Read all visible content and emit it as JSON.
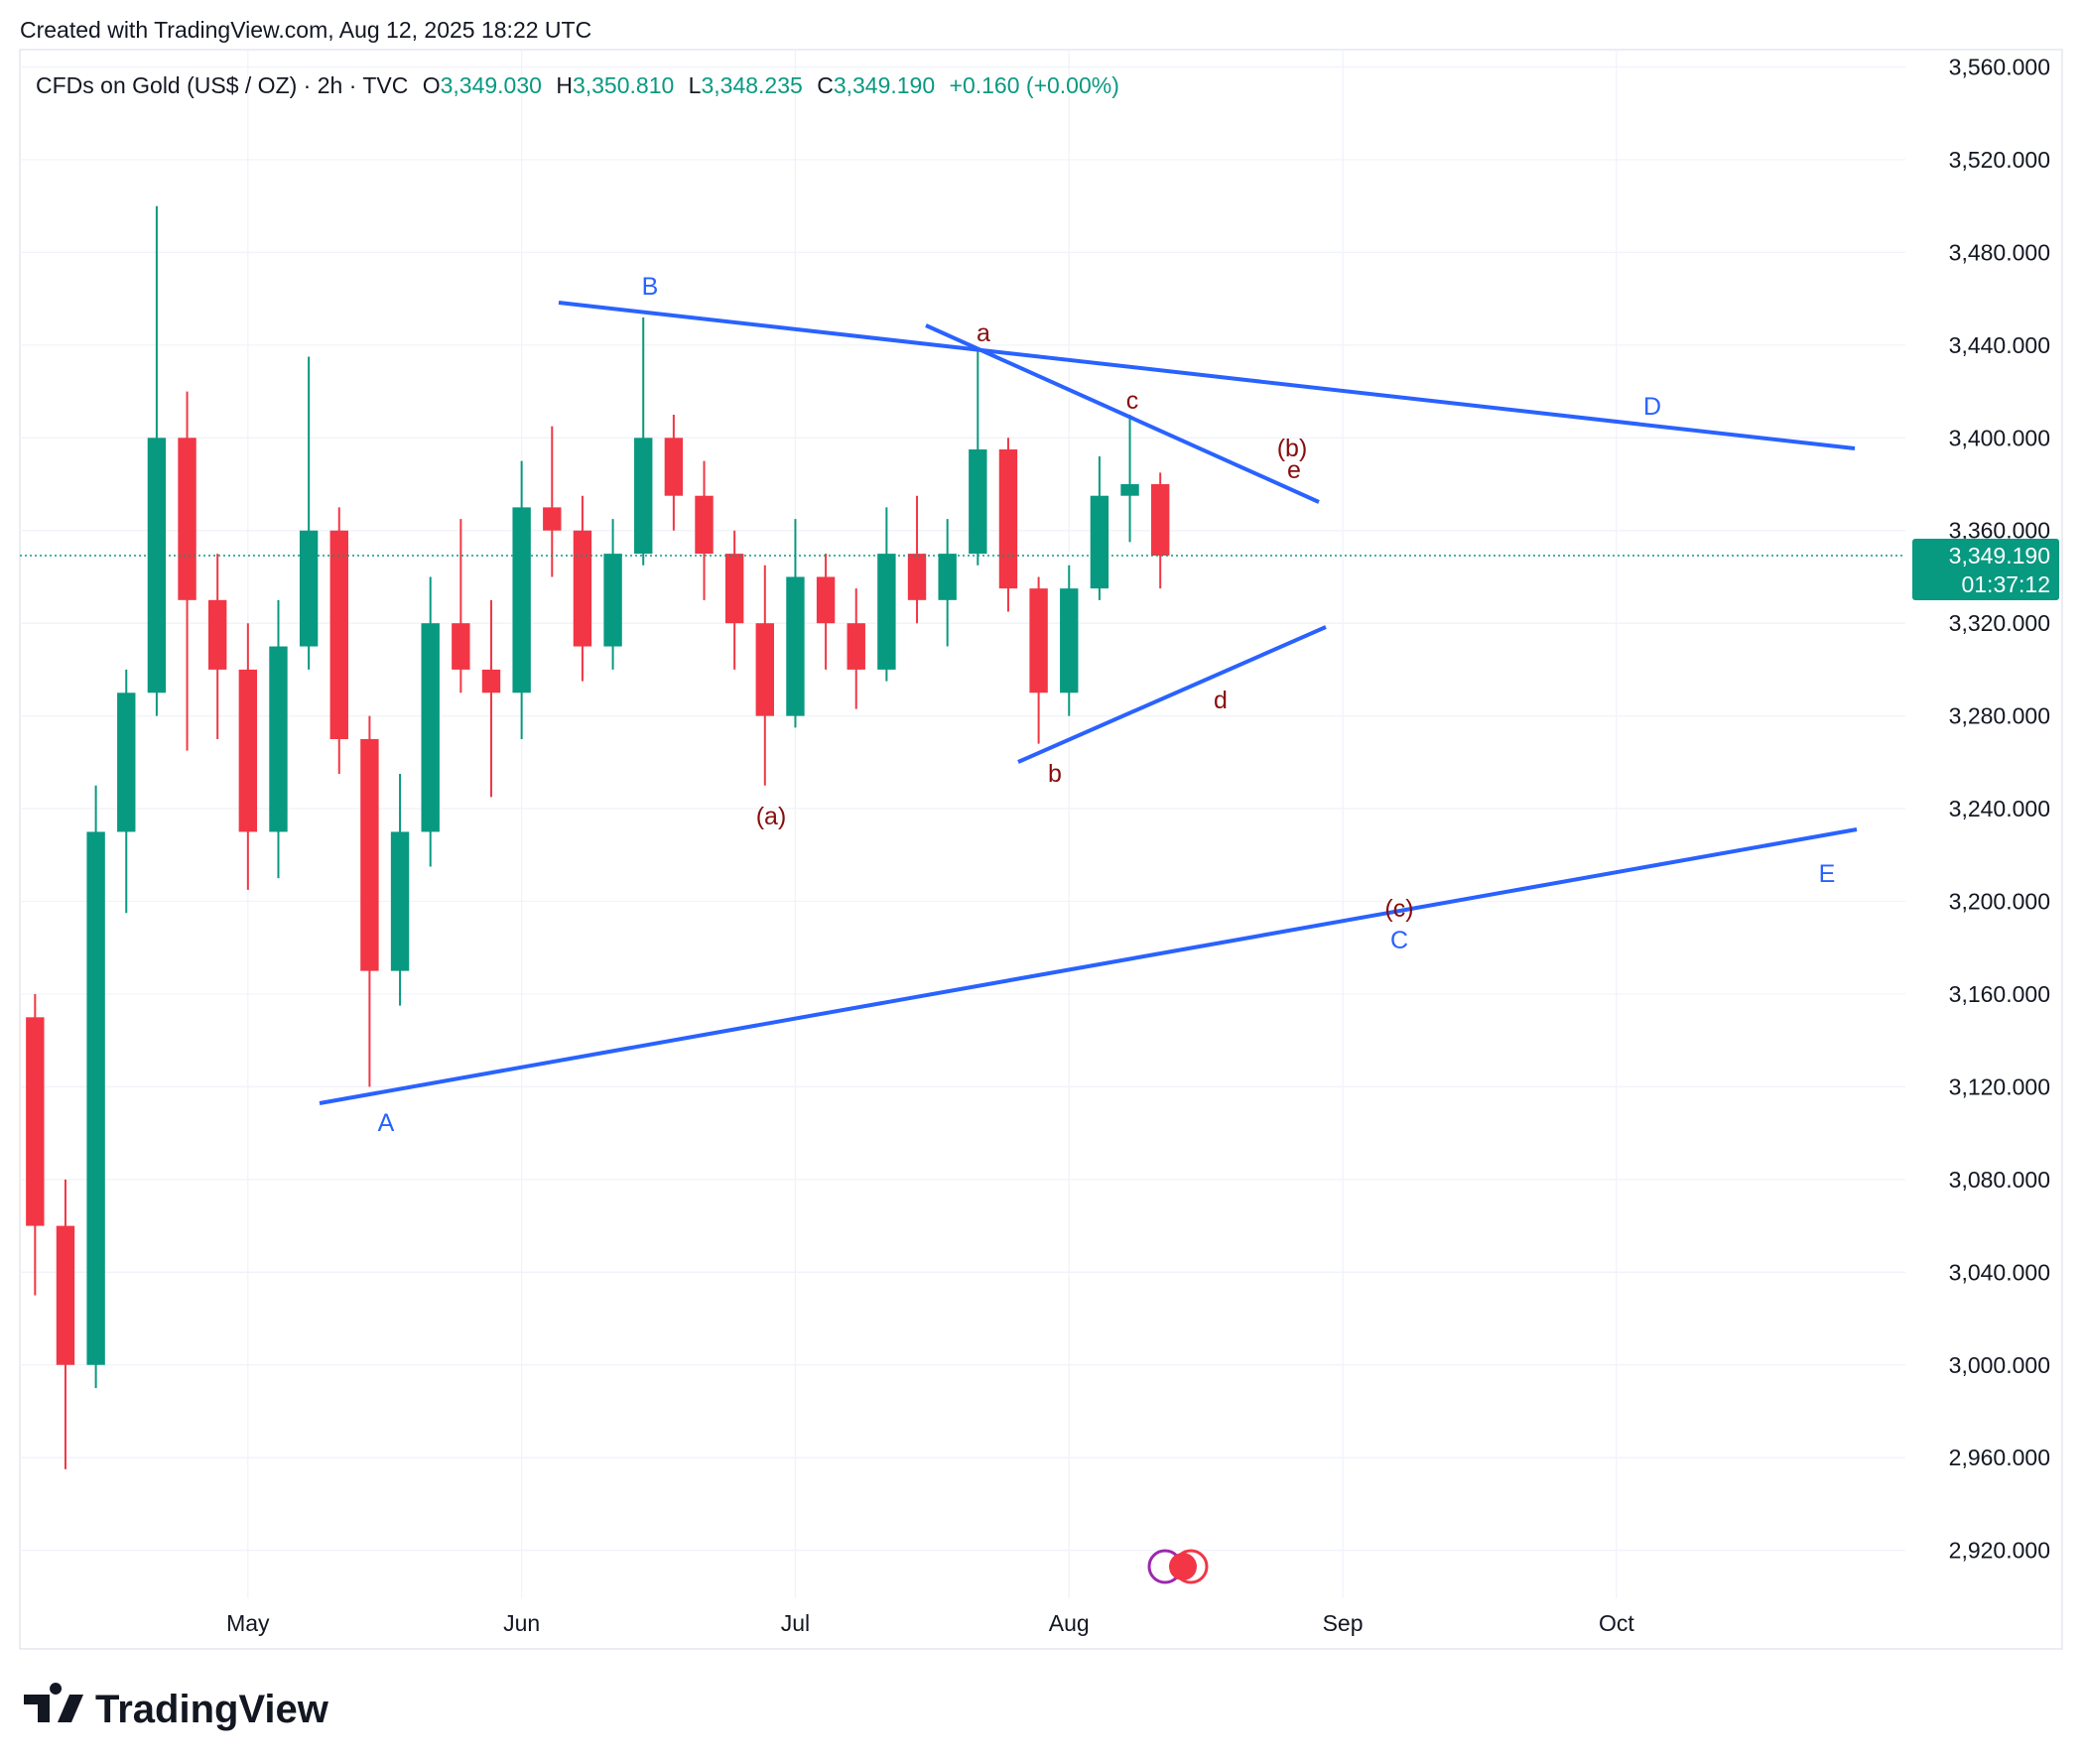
{
  "caption": "Created with TradingView.com, Aug 12, 2025 18:22 UTC",
  "footer": {
    "brand": "TradingView"
  },
  "chart_data": {
    "type": "candlestick",
    "title": "CFDs on Gold (US$ / OZ) · 2h · TVC",
    "ohlc": [
      {
        "key": "O",
        "value": "3,349.030"
      },
      {
        "key": "H",
        "value": "3,350.810"
      },
      {
        "key": "L",
        "value": "3,348.235"
      },
      {
        "key": "C",
        "value": "3,349.190"
      }
    ],
    "change": "+0.160 (+0.00%)",
    "up_color": "#089981",
    "down_color": "#f23645",
    "categories": [
      null,
      null,
      null,
      null,
      null,
      null,
      null,
      "May",
      null,
      null,
      null,
      null,
      null,
      null,
      null,
      null,
      "Jun",
      null,
      null,
      null,
      null,
      null,
      null,
      null,
      null,
      "Jul",
      null,
      null,
      null,
      null,
      null,
      null,
      null,
      null,
      "Aug",
      null,
      null,
      null,
      null,
      null,
      null,
      null,
      null,
      "Sep",
      null,
      null,
      null,
      null,
      null,
      null,
      null,
      null,
      "Oct",
      null,
      null,
      null,
      null,
      null,
      null,
      null,
      null,
      null
    ],
    "open": [
      3150,
      3060,
      3000,
      3230,
      3290,
      3400,
      3330,
      3300,
      3230,
      3310,
      3360,
      3270,
      3170,
      3230,
      3320,
      3300,
      3290,
      3370,
      3360,
      3310,
      3350,
      3400,
      3375,
      3350,
      3320,
      3280,
      3340,
      3320,
      3300,
      3350,
      3330,
      3350,
      3395,
      3335,
      3290,
      3335,
      3375,
      3380,
      null,
      null,
      null,
      null,
      null,
      null,
      null,
      null,
      null,
      null,
      null,
      null,
      null,
      null,
      null,
      null,
      null,
      null,
      null,
      null,
      null,
      null,
      null,
      null
    ],
    "high": [
      3160,
      3080,
      3250,
      3300,
      3500,
      3420,
      3350,
      3320,
      3330,
      3435,
      3370,
      3280,
      3255,
      3340,
      3365,
      3330,
      3390,
      3405,
      3375,
      3365,
      3452,
      3410,
      3390,
      3360,
      3345,
      3365,
      3350,
      3335,
      3370,
      3375,
      3365,
      3438,
      3400,
      3340,
      3345,
      3392,
      3410,
      3385,
      null,
      null,
      null,
      null,
      null,
      null,
      null,
      null,
      null,
      null,
      null,
      null,
      null,
      null,
      null,
      null,
      null,
      null,
      null,
      null,
      null,
      null,
      null,
      null
    ],
    "low": [
      3030,
      2955,
      2990,
      3195,
      3280,
      3265,
      3270,
      3205,
      3210,
      3300,
      3255,
      3120,
      3155,
      3215,
      3290,
      3245,
      3270,
      3340,
      3295,
      3300,
      3345,
      3360,
      3330,
      3300,
      3250,
      3275,
      3300,
      3283,
      3295,
      3320,
      3310,
      3345,
      3325,
      3268,
      3280,
      3330,
      3355,
      3335,
      null,
      null,
      null,
      null,
      null,
      null,
      null,
      null,
      null,
      null,
      null,
      null,
      null,
      null,
      null,
      null,
      null,
      null,
      null,
      null,
      null,
      null,
      null,
      null
    ],
    "close": [
      3060,
      3000,
      3230,
      3290,
      3400,
      3330,
      3300,
      3230,
      3310,
      3360,
      3270,
      3170,
      3230,
      3320,
      3300,
      3290,
      3370,
      3360,
      3310,
      3350,
      3400,
      3375,
      3350,
      3320,
      3280,
      3340,
      3320,
      3300,
      3350,
      3330,
      3350,
      3395,
      3335,
      3290,
      3335,
      3375,
      3380,
      3349.19,
      null,
      null,
      null,
      null,
      null,
      null,
      null,
      null,
      null,
      null,
      null,
      null,
      null,
      null,
      null,
      null,
      null,
      null,
      null,
      null,
      null,
      null,
      null,
      null
    ],
    "last_price": {
      "value": 3349.19,
      "label": "3,349.190"
    },
    "countdown": "01:37:12",
    "ylim": [
      2899.3,
      3567.5
    ],
    "yticks": [
      {
        "value": 2920,
        "label": "2,920.000"
      },
      {
        "value": 2960,
        "label": "2,960.000"
      },
      {
        "value": 3000,
        "label": "3,000.000"
      },
      {
        "value": 3040,
        "label": "3,040.000"
      },
      {
        "value": 3080,
        "label": "3,080.000"
      },
      {
        "value": 3120,
        "label": "3,120.000"
      },
      {
        "value": 3160,
        "label": "3,160.000"
      },
      {
        "value": 3200,
        "label": "3,200.000"
      },
      {
        "value": 3240,
        "label": "3,240.000"
      },
      {
        "value": 3280,
        "label": "3,280.000"
      },
      {
        "value": 3320,
        "label": "3,320.000"
      },
      {
        "value": 3360,
        "label": "3,360.000"
      },
      {
        "value": 3400,
        "label": "3,400.000"
      },
      {
        "value": 3440,
        "label": "3,440.000"
      },
      {
        "value": 3480,
        "label": "3,480.000"
      },
      {
        "value": 3520,
        "label": "3,520.000"
      },
      {
        "value": 3560,
        "label": "3,560.000"
      }
    ],
    "grid": true,
    "annotations": [
      "B",
      "a",
      "c",
      "(b)",
      "e",
      "D",
      "d",
      "b",
      "(a)",
      "(c)",
      "C",
      "E",
      "A"
    ]
  }
}
